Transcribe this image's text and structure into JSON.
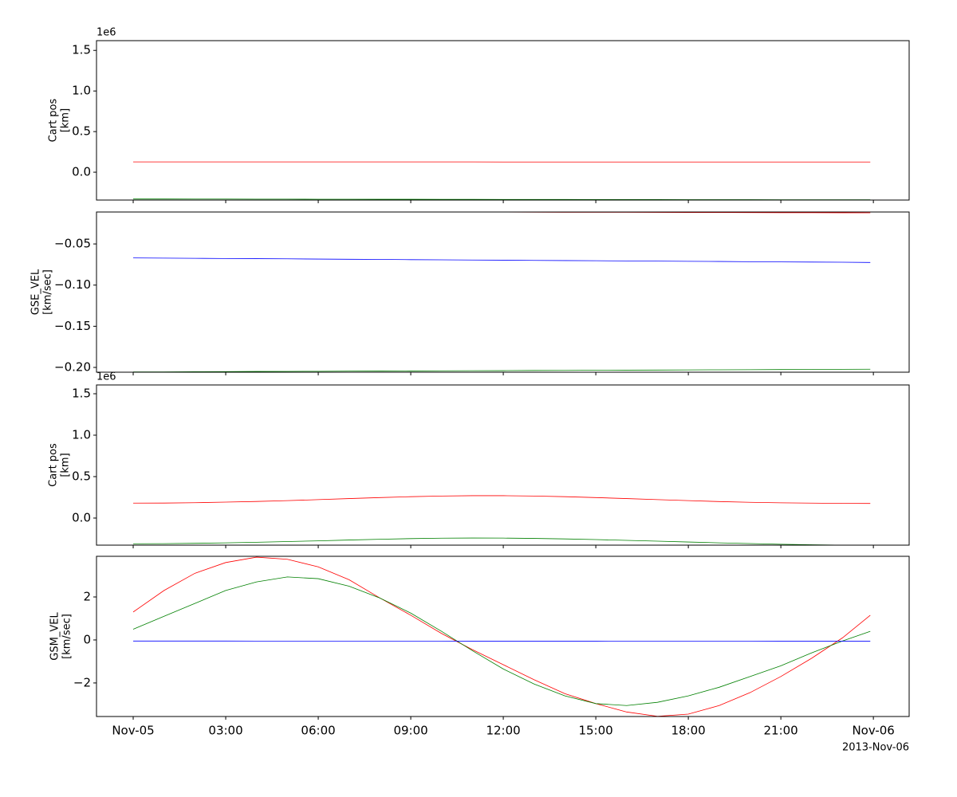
{
  "chart_data": [
    {
      "type": "line",
      "ylabel_lines": [
        "Cart pos",
        "[km]"
      ],
      "y_offset_label": "1e6",
      "x": [
        0,
        1,
        2,
        3,
        4,
        5,
        6,
        7,
        8,
        9,
        10,
        11,
        12,
        13,
        14,
        15,
        16,
        17,
        18,
        19,
        20,
        21,
        22,
        23,
        23.9
      ],
      "xlim": [
        -1.19,
        25.16
      ],
      "xticks": [
        0,
        3,
        6,
        9,
        12,
        15,
        18,
        21,
        24
      ],
      "ylim": [
        -0.343,
        1.62
      ],
      "yticks": [
        {
          "value": 0,
          "label": "0.0"
        },
        0.5,
        {
          "value": 1,
          "label": "1.0"
        },
        1.5
      ],
      "series": [
        {
          "color": "#ff0000",
          "values": [
            0.127,
            0.127,
            0.127,
            0.127,
            0.127,
            0.127,
            0.127,
            0.127,
            0.127,
            0.127,
            0.127,
            0.127,
            0.126,
            0.126,
            0.126,
            0.126,
            0.126,
            0.126,
            0.126,
            0.126,
            0.126,
            0.126,
            0.126,
            0.126,
            0.126
          ]
        },
        {
          "color": "#008000",
          "values": [
            -0.33,
            -0.33,
            -0.331,
            -0.331,
            -0.332,
            -0.332,
            -0.333,
            -0.333,
            -0.334,
            -0.334,
            -0.335,
            -0.335,
            -0.336,
            -0.336,
            -0.336,
            -0.337,
            -0.337,
            -0.337,
            -0.338,
            -0.338,
            -0.338,
            -0.339,
            -0.339,
            -0.339,
            -0.34
          ]
        }
      ]
    },
    {
      "type": "line",
      "ylabel_lines": [
        "GSE_VEL",
        "[km/sec]"
      ],
      "x": [
        0,
        1,
        2,
        3,
        4,
        5,
        6,
        7,
        8,
        9,
        10,
        11,
        12,
        13,
        14,
        15,
        16,
        17,
        18,
        19,
        20,
        21,
        22,
        23,
        23.9
      ],
      "xlim": [
        -1.19,
        25.16
      ],
      "xticks": [
        0,
        3,
        6,
        9,
        12,
        15,
        18,
        21,
        24
      ],
      "ylim": [
        -0.2058,
        -0.0112
      ],
      "yticks": [
        {
          "value": -0.2,
          "label": "−0.20"
        },
        {
          "value": -0.15,
          "label": "−0.15"
        },
        {
          "value": -0.1,
          "label": "−0.10"
        },
        {
          "value": -0.05,
          "label": "−0.05"
        }
      ],
      "series": [
        {
          "color": "#ff0000",
          "values": [
            -0.0105,
            -0.0106,
            -0.0106,
            -0.0107,
            -0.0108,
            -0.0109,
            -0.0109,
            -0.011,
            -0.0111,
            -0.0111,
            -0.0112,
            -0.0113,
            -0.0113,
            -0.0114,
            -0.0115,
            -0.0116,
            -0.0116,
            -0.0117,
            -0.0118,
            -0.0118,
            -0.0119,
            -0.012,
            -0.012,
            -0.0121,
            -0.0122
          ]
        },
        {
          "color": "#008000",
          "values": [
            -0.2055,
            -0.2054,
            -0.2052,
            -0.2051,
            -0.2049,
            -0.2048,
            -0.2047,
            -0.2045,
            -0.2044,
            -0.2043,
            -0.2041,
            -0.204,
            -0.2039,
            -0.2037,
            -0.2036,
            -0.2034,
            -0.2033,
            -0.2032,
            -0.203,
            -0.2029,
            -0.2028,
            -0.2026,
            -0.2025,
            -0.2023,
            -0.2022
          ]
        },
        {
          "color": "#0000ff",
          "values": [
            -0.067,
            -0.0672,
            -0.0675,
            -0.0677,
            -0.0679,
            -0.0681,
            -0.0684,
            -0.0686,
            -0.0688,
            -0.0691,
            -0.0693,
            -0.0695,
            -0.0697,
            -0.07,
            -0.0702,
            -0.0704,
            -0.0706,
            -0.0709,
            -0.0711,
            -0.0713,
            -0.0716,
            -0.0718,
            -0.072,
            -0.0722,
            -0.0725
          ]
        }
      ]
    },
    {
      "type": "line",
      "ylabel_lines": [
        "Cart pos",
        "[km]"
      ],
      "y_offset_label": "1e6",
      "x": [
        0,
        1,
        2,
        3,
        4,
        5,
        6,
        7,
        8,
        9,
        10,
        11,
        12,
        13,
        14,
        15,
        16,
        17,
        18,
        19,
        20,
        21,
        22,
        23,
        23.9
      ],
      "xlim": [
        -1.19,
        25.16
      ],
      "xticks": [
        0,
        3,
        6,
        9,
        12,
        15,
        18,
        21,
        24
      ],
      "ylim": [
        -0.327,
        1.606
      ],
      "yticks": [
        {
          "value": 0,
          "label": "0.0"
        },
        0.5,
        {
          "value": 1,
          "label": "1.0"
        },
        1.5
      ],
      "series": [
        {
          "color": "#ff0000",
          "values": [
            0.18,
            0.181,
            0.185,
            0.192,
            0.2,
            0.21,
            0.222,
            0.235,
            0.247,
            0.258,
            0.266,
            0.27,
            0.27,
            0.266,
            0.258,
            0.247,
            0.235,
            0.222,
            0.21,
            0.199,
            0.19,
            0.184,
            0.18,
            0.177,
            0.176
          ]
        },
        {
          "color": "#008000",
          "values": [
            -0.31,
            -0.309,
            -0.305,
            -0.299,
            -0.292,
            -0.284,
            -0.275,
            -0.265,
            -0.256,
            -0.248,
            -0.243,
            -0.241,
            -0.242,
            -0.246,
            -0.252,
            -0.26,
            -0.269,
            -0.279,
            -0.289,
            -0.299,
            -0.308,
            -0.316,
            -0.322,
            -0.327,
            -0.331
          ]
        }
      ]
    },
    {
      "type": "line",
      "ylabel_lines": [
        "GSM_VEL",
        "[km/sec]"
      ],
      "date_label": "2013-Nov-06",
      "x": [
        0,
        1,
        2,
        3,
        4,
        5,
        6,
        7,
        8,
        9,
        10,
        11,
        12,
        13,
        14,
        15,
        16,
        17,
        18,
        19,
        20,
        21,
        22,
        23,
        23.9
      ],
      "xlim": [
        -1.19,
        25.16
      ],
      "xticks": [
        {
          "value": 0,
          "label": "Nov-05"
        },
        {
          "value": 3,
          "label": "03:00"
        },
        {
          "value": 6,
          "label": "06:00"
        },
        {
          "value": 9,
          "label": "09:00"
        },
        {
          "value": 12,
          "label": "12:00"
        },
        {
          "value": 15,
          "label": "15:00"
        },
        {
          "value": 18,
          "label": "18:00"
        },
        {
          "value": 21,
          "label": "21:00"
        },
        {
          "value": 24,
          "label": "Nov-06"
        }
      ],
      "ylim": [
        -3.56,
        3.89
      ],
      "yticks": [
        {
          "value": -2,
          "label": "−2"
        },
        0,
        2
      ],
      "series": [
        {
          "color": "#ff0000",
          "values": [
            1.3,
            2.3,
            3.1,
            3.6,
            3.85,
            3.75,
            3.4,
            2.8,
            1.95,
            1.15,
            0.3,
            -0.45,
            -1.15,
            -1.85,
            -2.5,
            -2.96,
            -3.35,
            -3.55,
            -3.45,
            -3.05,
            -2.45,
            -1.7,
            -0.85,
            0.1,
            1.15
          ]
        },
        {
          "color": "#008000",
          "values": [
            0.5,
            1.1,
            1.7,
            2.3,
            2.7,
            2.93,
            2.85,
            2.5,
            1.95,
            1.25,
            0.4,
            -0.5,
            -1.35,
            -2.05,
            -2.6,
            -2.96,
            -3.05,
            -2.9,
            -2.6,
            -2.2,
            -1.7,
            -1.2,
            -0.6,
            -0.05,
            0.4
          ]
        },
        {
          "color": "#0000ff",
          "values": [
            -0.05,
            -0.05,
            -0.051,
            -0.051,
            -0.052,
            -0.052,
            -0.052,
            -0.053,
            -0.053,
            -0.054,
            -0.054,
            -0.055,
            -0.055,
            -0.055,
            -0.056,
            -0.056,
            -0.057,
            -0.057,
            -0.058,
            -0.058,
            -0.058,
            -0.059,
            -0.059,
            -0.06,
            -0.06
          ]
        }
      ]
    }
  ]
}
